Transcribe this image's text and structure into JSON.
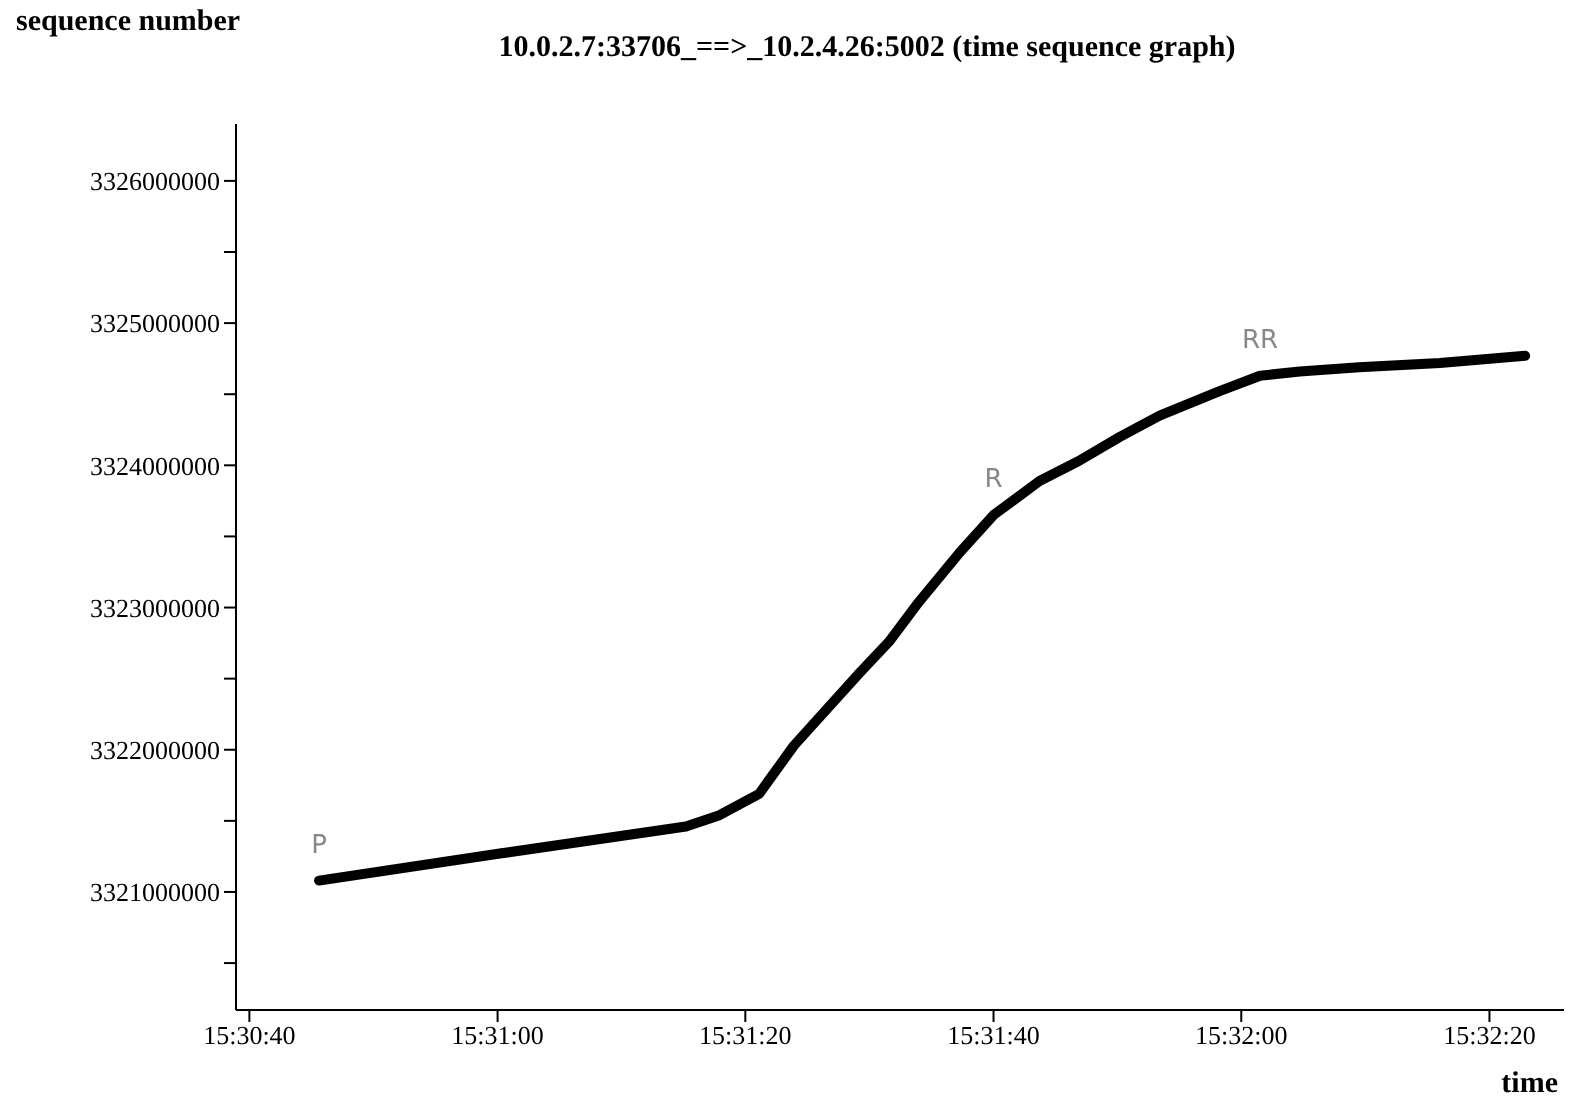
{
  "chart_data": {
    "type": "line",
    "title": "10.0.2.7:33706_==>_10.2.4.26:5002 (time sequence graph)",
    "xlabel": "time",
    "ylabel": "sequence number",
    "x": [
      15.51267,
      15.51672,
      15.52089,
      15.52164,
      15.52253,
      15.52331,
      15.52478,
      15.52544,
      15.52611,
      15.52703,
      15.52778,
      15.52881,
      15.52969,
      15.53061,
      15.5315,
      15.53283,
      15.53375,
      15.53464,
      15.53597,
      15.53778,
      15.53969
    ],
    "series": [
      {
        "color": "#000000",
        "values": [
          3321080000,
          3321270000,
          3321460000,
          3321540000,
          3321690000,
          3322030000,
          3322540000,
          3322760000,
          3323040000,
          3323390000,
          3323650000,
          3323890000,
          3324030000,
          3324200000,
          3324350000,
          3324520000,
          3324630000,
          3324660000,
          3324690000,
          3324720000,
          3324770000
        ]
      }
    ],
    "xlim": [
      15.51081,
      15.54056
    ],
    "xticks": [
      {
        "value": 15.51111,
        "label": "15:30:40"
      },
      {
        "value": 15.51667,
        "label": "15:31:00"
      },
      {
        "value": 15.52222,
        "label": "15:31:20"
      },
      {
        "value": 15.52778,
        "label": "15:31:40"
      },
      {
        "value": 15.53333,
        "label": "15:32:00"
      },
      {
        "value": 15.53889,
        "label": "15:32:20"
      }
    ],
    "ylim": [
      3320170000,
      3326400000
    ],
    "yticks": [
      {
        "value": 3320500000,
        "label": null
      },
      3321000000,
      {
        "value": 3321500000,
        "label": null
      },
      3322000000,
      {
        "value": 3322500000,
        "label": null
      },
      3323000000,
      {
        "value": 3323500000,
        "label": null
      },
      3324000000,
      {
        "value": 3324500000,
        "label": null
      },
      3325000000,
      {
        "value": 3325500000,
        "label": null
      },
      3326000000
    ],
    "annotations": [
      {
        "text": "P",
        "x": 15.51267,
        "y": 3321080000
      },
      {
        "text": "R",
        "x": 15.52778,
        "y": 3323650000
      },
      {
        "text": "RR",
        "x": 15.53375,
        "y": 3324630000
      }
    ]
  }
}
